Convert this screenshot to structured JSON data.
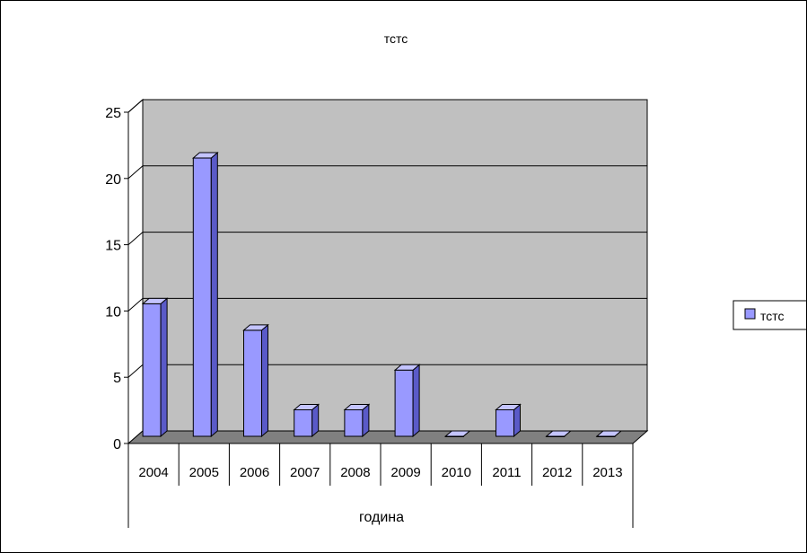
{
  "chart_data": {
    "type": "bar",
    "style": "3d-column",
    "title": "тстс",
    "xlabel": "година",
    "ylabel": "",
    "categories": [
      "2004",
      "2005",
      "2006",
      "2007",
      "2008",
      "2009",
      "2010",
      "2011",
      "2012",
      "2013"
    ],
    "series": [
      {
        "name": "тстс",
        "values": [
          10,
          21,
          8,
          2,
          2,
          5,
          0,
          2,
          0,
          0
        ]
      }
    ],
    "ylim": [
      0,
      25
    ],
    "yticks": [
      "0",
      "5",
      "10",
      "15",
      "20",
      "25"
    ],
    "grid": true,
    "legend_position": "right",
    "colors": {
      "bar_front": "#9999FF",
      "bar_side": "#5A5AC8",
      "bar_top": "#C4C4FF",
      "wall": "#C0C0C0",
      "floor": "#808080",
      "gridline": "#000000"
    }
  }
}
